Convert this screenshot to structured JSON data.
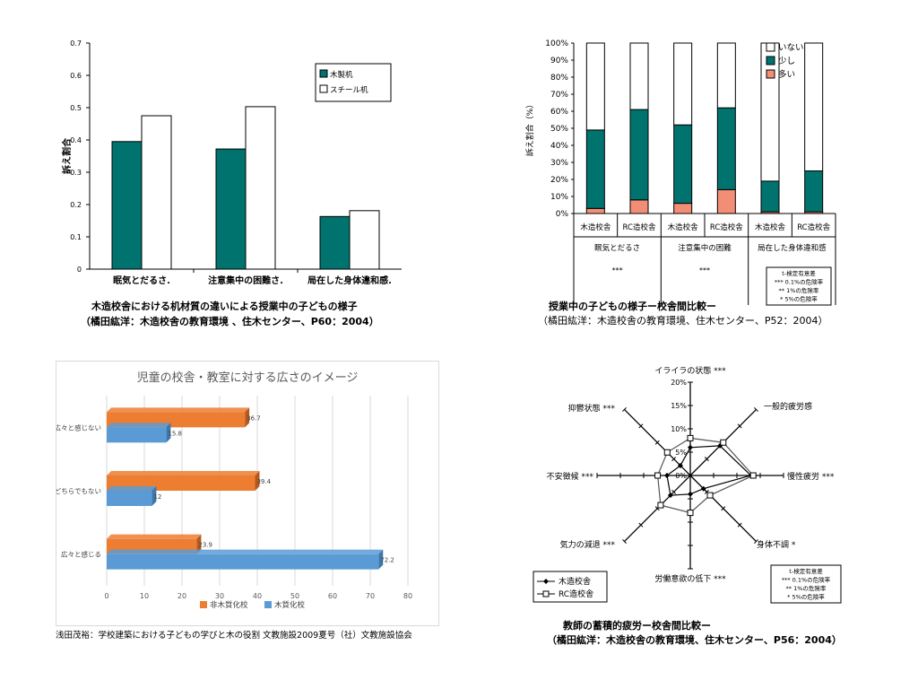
{
  "chart_data": [
    {
      "type": "bar",
      "ylabel": "訴え割合",
      "ylim": [
        0,
        0.7
      ],
      "yticks": [
        "0",
        "0.1",
        "0.2",
        "0.3",
        "0.4",
        "0.5",
        "0.6",
        "0.7"
      ],
      "categories": [
        "眠気とだるさ.",
        "注意集中の困難さ.",
        "局在した身体違和感."
      ],
      "series": [
        {
          "name": "木製机",
          "color": "#00736f",
          "values": [
            0.395,
            0.372,
            0.163
          ]
        },
        {
          "name": "スチール机",
          "color": "#ffffff",
          "values": [
            0.475,
            0.503,
            0.181
          ]
        }
      ],
      "legend": "top-right",
      "caption": [
        "木造校舎における机材質の違いによる授業中の子どもの様子",
        "（橘田紘洋：木造校舎の教育環境 、住木センター、P60：2004）"
      ]
    },
    {
      "type": "bar",
      "stacked": true,
      "ylabel": "訴え割合（%）",
      "ylim": [
        0,
        100
      ],
      "yticks": [
        "0%",
        "10%",
        "20%",
        "30%",
        "40%",
        "50%",
        "60%",
        "70%",
        "80%",
        "90%",
        "100%"
      ],
      "categories": [
        "木造校舎",
        "RC造校舎",
        "木造校舎",
        "RC造校舎",
        "木造校舎",
        "RC造校舎"
      ],
      "groups": [
        {
          "label": "眠気とだるさ",
          "sig": "***"
        },
        {
          "label": "注意集中の困難",
          "sig": "***"
        },
        {
          "label": "局在した身体違和感",
          "sig": "**"
        }
      ],
      "series": [
        {
          "name": "多い",
          "color": "#f28e75",
          "values": [
            3,
            8,
            6,
            14,
            1,
            1
          ]
        },
        {
          "name": "少し",
          "color": "#00736f",
          "values": [
            46,
            53,
            46,
            48,
            18,
            24
          ]
        },
        {
          "name": "いない",
          "color": "#ffffff",
          "values": [
            51,
            39,
            48,
            38,
            81,
            75
          ]
        }
      ],
      "legend": "top-right",
      "sig_note": [
        "t-検定有意差",
        "*** 0.1%の危険率",
        "** 1%の危険率",
        "* 5%の危険率"
      ],
      "caption": [
        "授業中の子どもの様子ー校舎間比較ー",
        "（橘田紘洋：木造校舎の教育環境、住木センター、P52：2004）"
      ]
    },
    {
      "type": "bar",
      "orientation": "horizontal",
      "title": "児童の校舎・教室に対する広さのイメージ",
      "xlim": [
        0,
        80
      ],
      "xticks": [
        "0",
        "10",
        "20",
        "30",
        "40",
        "50",
        "60",
        "70",
        "80"
      ],
      "categories": [
        "広々と感じない",
        "どちらでもない",
        "広々と感じる"
      ],
      "series": [
        {
          "name": "非木質化校",
          "color": "#ed7d31",
          "values": [
            36.7,
            39.4,
            23.9
          ]
        },
        {
          "name": "木質化校",
          "color": "#5b9bd5",
          "values": [
            15.8,
            12,
            72.2
          ]
        }
      ],
      "value_labels": [
        [
          "36.7",
          "39.4",
          "23.9"
        ],
        [
          "15.8",
          "12",
          "72.2"
        ]
      ],
      "legend": "bottom",
      "caption": "浅田茂裕：学校建築における子どもの学びと木の役割 文教施設2009夏号（社）文教施設協会"
    },
    {
      "type": "radar",
      "rlim": [
        0,
        20
      ],
      "rticks": [
        "0%",
        "5%",
        "10%",
        "15%",
        "20%"
      ],
      "axes": [
        {
          "label": "イライラの状態 ***"
        },
        {
          "label": "一般的疲労感"
        },
        {
          "label": "慢性疲労 ***"
        },
        {
          "label": "身体不調 *"
        },
        {
          "label": "労働意欲の低下 ***"
        },
        {
          "label": "気力の減退 ***"
        },
        {
          "label": "不安徴候 ***"
        },
        {
          "label": "抑鬱状態 ***"
        }
      ],
      "series": [
        {
          "name": "木造校舎",
          "marker": "filled-diamond",
          "values": [
            6,
            9,
            13,
            4,
            4,
            6,
            5,
            3
          ]
        },
        {
          "name": "RC造校舎",
          "marker": "open-square",
          "values": [
            8,
            10,
            13.5,
            6,
            8,
            9,
            7,
            7
          ]
        }
      ],
      "legend": "bottom-left",
      "sig_note": [
        "t-検定有意差",
        "*** 0.1%の危険率",
        "** 1%の危険率",
        "* 5%の危険率"
      ],
      "caption": [
        "教師の蓄積的疲労ー校舎間比較ー",
        "（橘田紘洋：木造校舎の教育環境、住木センター、P56：2004）"
      ]
    }
  ]
}
